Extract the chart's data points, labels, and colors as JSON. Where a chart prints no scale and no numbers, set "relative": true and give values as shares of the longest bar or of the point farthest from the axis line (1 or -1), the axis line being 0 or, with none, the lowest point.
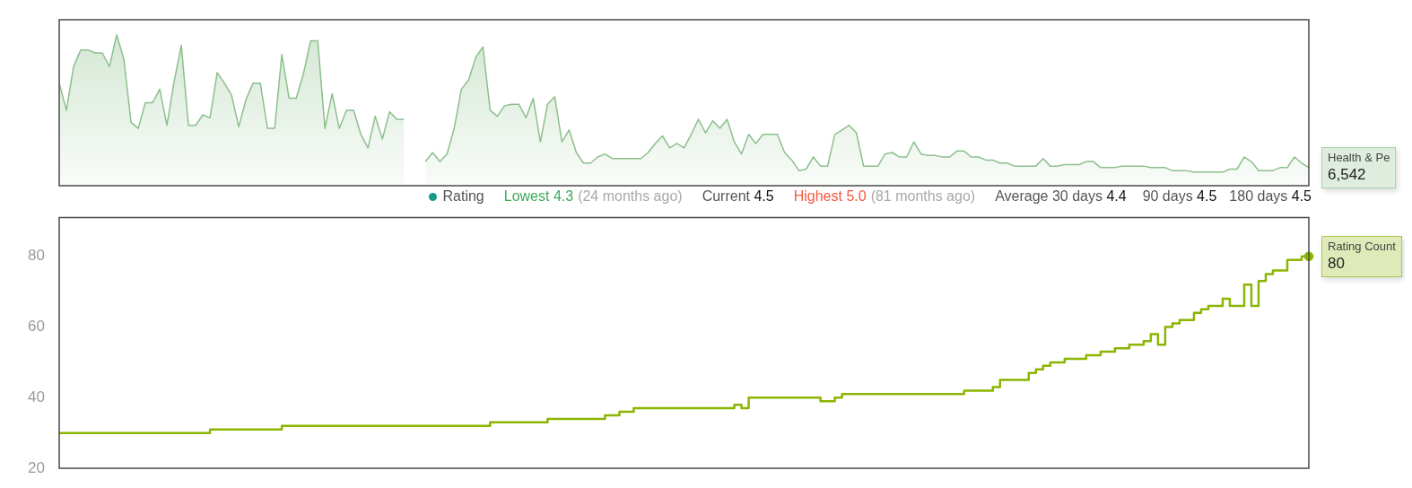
{
  "chart_data": [
    {
      "type": "area",
      "relative": true,
      "annotations": [
        "Health & Pe",
        "6,542"
      ],
      "categories": [
        null,
        null,
        null,
        null,
        null,
        null,
        null,
        null,
        null,
        null,
        null,
        null,
        null,
        null,
        null,
        null,
        null,
        null,
        null,
        null,
        null,
        null,
        null,
        null,
        null,
        null,
        null,
        null,
        null,
        null,
        null,
        null,
        null,
        null,
        null,
        null,
        null,
        null,
        null,
        null,
        null,
        null,
        null,
        null,
        null,
        null,
        null,
        null,
        null,
        null,
        null,
        null,
        null,
        null,
        null,
        null,
        null,
        null,
        null,
        null,
        null,
        null,
        null,
        null,
        null,
        null,
        null,
        null,
        null,
        null,
        null,
        null,
        null,
        null,
        null,
        null,
        null,
        null,
        null,
        null,
        null,
        null,
        null,
        null,
        null,
        null,
        null,
        null,
        null,
        null,
        null,
        null,
        null,
        null,
        null,
        null,
        null,
        null,
        null,
        null,
        null,
        null,
        null,
        null,
        null,
        null,
        null,
        null,
        null,
        null,
        null,
        null,
        null,
        null,
        null,
        null,
        null,
        null,
        null,
        null,
        null,
        null,
        null,
        null,
        null,
        null,
        null,
        null,
        null,
        null,
        null,
        null,
        null,
        null,
        null,
        null,
        null,
        null,
        null,
        null,
        null,
        null,
        null,
        null,
        null,
        null,
        null,
        null,
        null,
        null,
        null,
        null,
        null,
        null,
        null,
        null,
        null,
        null,
        null,
        null,
        null,
        null,
        null,
        null,
        null,
        null,
        null,
        null,
        null,
        null,
        null,
        null,
        null,
        null,
        null
      ],
      "series": [
        {
          "color": "#8cbf8c",
          "values": [
            0.68,
            0.5,
            0.79,
            0.9,
            0.9,
            0.88,
            0.88,
            0.79,
            1,
            0.84,
            0.42,
            0.38,
            0.55,
            0.55,
            0.64,
            0.4,
            0.69,
            0.93,
            0.4,
            0.4,
            0.47,
            0.45,
            0.75,
            0.68,
            0.6,
            0.39,
            0.57,
            0.68,
            0.68,
            0.38,
            0.38,
            0.87,
            0.58,
            0.58,
            0.74,
            0.96,
            0.96,
            0.38,
            0.61,
            0.38,
            0.5,
            0.5,
            0.34,
            0.25,
            0.46,
            0.31,
            0.49,
            0.44,
            0.44,
            null,
            null,
            null,
            null,
            null,
            null,
            null,
            null,
            null,
            null,
            null,
            null,
            null,
            null,
            null,
            null,
            null,
            null,
            null,
            null,
            null,
            null,
            null,
            null,
            null,
            null,
            null,
            null,
            null,
            null,
            null,
            null,
            null,
            null,
            null,
            null,
            null,
            null,
            null,
            null,
            null,
            null,
            null,
            null,
            null,
            null,
            null,
            null,
            null,
            null,
            null,
            null,
            null,
            null,
            null,
            null,
            null,
            null,
            null,
            null,
            null,
            null,
            null,
            null,
            null,
            null,
            null,
            null,
            null,
            null,
            null,
            null,
            null,
            null,
            null,
            null,
            null,
            null,
            null,
            null,
            null,
            null,
            null,
            null,
            null,
            null,
            null,
            null,
            null,
            null,
            null,
            null,
            null,
            null,
            null,
            null,
            null,
            null,
            null,
            null,
            null,
            null,
            null,
            null,
            null,
            null,
            null,
            null,
            null,
            null,
            null,
            null,
            null,
            null,
            null,
            null,
            null,
            null,
            null,
            null,
            null,
            null,
            null,
            null,
            null,
            null
          ]
        },
        {
          "color": "#8cbf8c",
          "values": [
            null,
            null,
            null,
            null,
            null,
            null,
            null,
            null,
            null,
            null,
            null,
            null,
            null,
            null,
            null,
            null,
            null,
            null,
            null,
            null,
            null,
            null,
            null,
            null,
            null,
            null,
            null,
            null,
            null,
            null,
            null,
            null,
            null,
            null,
            null,
            null,
            null,
            null,
            null,
            null,
            null,
            null,
            null,
            null,
            null,
            null,
            null,
            null,
            null,
            null,
            null,
            0.16,
            0.22,
            0.16,
            0.21,
            0.38,
            0.64,
            0.7,
            0.85,
            0.92,
            0.5,
            0.46,
            0.53,
            0.54,
            0.54,
            0.45,
            0.58,
            0.29,
            0.54,
            0.59,
            0.29,
            0.37,
            0.22,
            0.15,
            0.15,
            0.19,
            0.21,
            0.18,
            0.18,
            0.18,
            0.18,
            0.18,
            0.22,
            0.28,
            0.33,
            0.25,
            0.28,
            0.25,
            0.34,
            0.44,
            0.35,
            0.43,
            0.38,
            0.44,
            0.29,
            0.21,
            0.34,
            0.28,
            0.34,
            0.34,
            0.34,
            0.22,
            0.17,
            0.1,
            0.11,
            0.19,
            0.13,
            0.13,
            0.34,
            0.37,
            0.4,
            0.35,
            0.13,
            0.13,
            0.13,
            0.21,
            0.22,
            0.19,
            0.19,
            0.29,
            0.21,
            0.2,
            0.2,
            0.19,
            0.19,
            0.23,
            0.23,
            0.19,
            0.19,
            0.17,
            0.17,
            0.15,
            0.15,
            0.13,
            0.13,
            0.13,
            0.13,
            0.18,
            0.13,
            0.13,
            0.14,
            0.14,
            0.14,
            0.16,
            0.16,
            0.12,
            0.12,
            0.12,
            0.13,
            0.13,
            0.13,
            0.13,
            0.12,
            0.12,
            0.12,
            0.1,
            0.1,
            0.1,
            0.09,
            0.09,
            0.09,
            0.09,
            0.09,
            0.11,
            0.11,
            0.19,
            0.16,
            0.1,
            0.1,
            0.1,
            0.12,
            0.12,
            0.19,
            0.15,
            0.12
          ]
        }
      ]
    },
    {
      "type": "step",
      "ylim": [
        20,
        91
      ],
      "yticks": [
        20,
        40,
        60,
        80
      ],
      "tick_labels": "y",
      "annotations": [
        "Rating",
        "Lowest 4.3",
        "(24 months ago)",
        "Current 4.5",
        "Highest 5.0",
        "(81 months ago)",
        "Average 30 days 4.4",
        "90 days 4.5",
        "180 days 4.5"
      ],
      "categories": [
        null,
        null,
        null,
        null,
        null,
        null,
        null,
        null,
        null,
        null,
        null,
        null,
        null,
        null,
        null,
        null,
        null,
        null,
        null,
        null,
        null,
        null,
        null,
        null,
        null,
        null,
        null,
        null,
        null,
        null,
        null,
        null,
        null,
        null,
        null,
        null,
        null,
        null,
        null,
        null,
        null,
        null,
        null,
        null,
        null,
        null,
        null,
        null,
        null,
        null,
        null,
        null,
        null,
        null,
        null,
        null,
        null,
        null,
        null,
        null,
        null,
        null,
        null,
        null,
        null,
        null,
        null,
        null,
        null,
        null,
        null,
        null,
        null,
        null,
        null,
        null,
        null,
        null,
        null,
        null,
        null,
        null,
        null,
        null,
        null,
        null,
        null,
        null,
        null,
        null,
        null,
        null,
        null,
        null,
        null,
        null,
        null,
        null,
        null,
        null,
        null,
        null,
        null,
        null,
        null,
        null,
        null,
        null,
        null,
        null,
        null,
        null,
        null,
        null,
        null,
        null,
        null,
        null,
        null,
        null,
        null,
        null,
        null,
        null,
        null,
        null,
        null,
        null,
        null,
        null,
        null,
        null,
        null,
        null,
        null,
        null,
        null,
        null,
        null,
        null,
        null,
        null,
        null,
        null,
        null,
        null,
        null,
        null,
        null,
        null,
        null,
        null,
        null,
        null,
        null,
        null,
        null,
        null,
        null,
        null,
        null,
        null,
        null,
        null,
        null,
        null,
        null,
        null,
        null,
        null,
        null,
        null,
        null,
        null,
        null
      ],
      "series": [
        {
          "name": "Rating Count",
          "color": "#8ab500",
          "values": [
            30,
            30,
            30,
            30,
            30,
            30,
            30,
            30,
            30,
            30,
            30,
            30,
            30,
            30,
            30,
            30,
            30,
            30,
            30,
            30,
            30,
            31,
            31,
            31,
            31,
            31,
            31,
            31,
            31,
            31,
            31,
            32,
            32,
            32,
            32,
            32,
            32,
            32,
            32,
            32,
            32,
            32,
            32,
            32,
            32,
            32,
            32,
            32,
            32,
            32,
            32,
            32,
            32,
            32,
            32,
            32,
            32,
            32,
            32,
            32,
            33,
            33,
            33,
            33,
            33,
            33,
            33,
            33,
            34,
            34,
            34,
            34,
            34,
            34,
            34,
            34,
            35,
            35,
            36,
            36,
            37,
            37,
            37,
            37,
            37,
            37,
            37,
            37,
            37,
            37,
            37,
            37,
            37,
            37,
            38,
            37,
            40,
            40,
            40,
            40,
            40,
            40,
            40,
            40,
            40,
            40,
            39,
            39,
            40,
            41,
            41,
            41,
            41,
            41,
            41,
            41,
            41,
            41,
            41,
            41,
            41,
            41,
            41,
            41,
            41,
            41,
            42,
            42,
            42,
            42,
            43,
            45,
            45,
            45,
            45,
            47,
            48,
            49,
            50,
            50,
            51,
            51,
            51,
            52,
            52,
            53,
            53,
            54,
            54,
            55,
            55,
            56,
            58,
            55,
            60,
            61,
            62,
            62,
            64,
            65,
            66,
            66,
            68,
            66,
            66,
            72,
            66,
            73,
            75,
            76,
            76,
            79,
            79,
            80,
            80
          ],
          "value_labels": [
            null,
            null,
            null,
            null,
            null,
            null,
            null,
            null,
            null,
            null,
            null,
            null,
            null,
            null,
            null,
            null,
            null,
            null,
            null,
            null,
            null,
            null,
            null,
            null,
            null,
            null,
            null,
            null,
            null,
            null,
            null,
            null,
            null,
            null,
            null,
            null,
            null,
            null,
            null,
            null,
            null,
            null,
            null,
            null,
            null,
            null,
            null,
            null,
            null,
            null,
            null,
            null,
            null,
            null,
            null,
            null,
            null,
            null,
            null,
            null,
            null,
            null,
            null,
            null,
            null,
            null,
            null,
            null,
            null,
            null,
            null,
            null,
            null,
            null,
            null,
            null,
            null,
            null,
            null,
            null,
            null,
            null,
            null,
            null,
            null,
            null,
            null,
            null,
            null,
            null,
            null,
            null,
            null,
            null,
            null,
            null,
            null,
            null,
            null,
            null,
            null,
            null,
            null,
            null,
            null,
            null,
            null,
            null,
            null,
            null,
            null,
            null,
            null,
            null,
            null,
            null,
            null,
            null,
            null,
            null,
            null,
            null,
            null,
            null,
            null,
            null,
            null,
            null,
            null,
            null,
            null,
            null,
            null,
            null,
            null,
            null,
            null,
            null,
            null,
            null,
            null,
            null,
            null,
            null,
            null,
            null,
            null,
            null,
            null,
            null,
            null,
            null,
            null,
            null,
            null,
            null,
            null,
            null,
            null,
            null,
            null,
            null,
            null,
            null,
            null,
            null,
            null,
            null,
            null,
            null,
            null,
            null,
            null,
            null,
            "80"
          ]
        }
      ]
    }
  ]
}
